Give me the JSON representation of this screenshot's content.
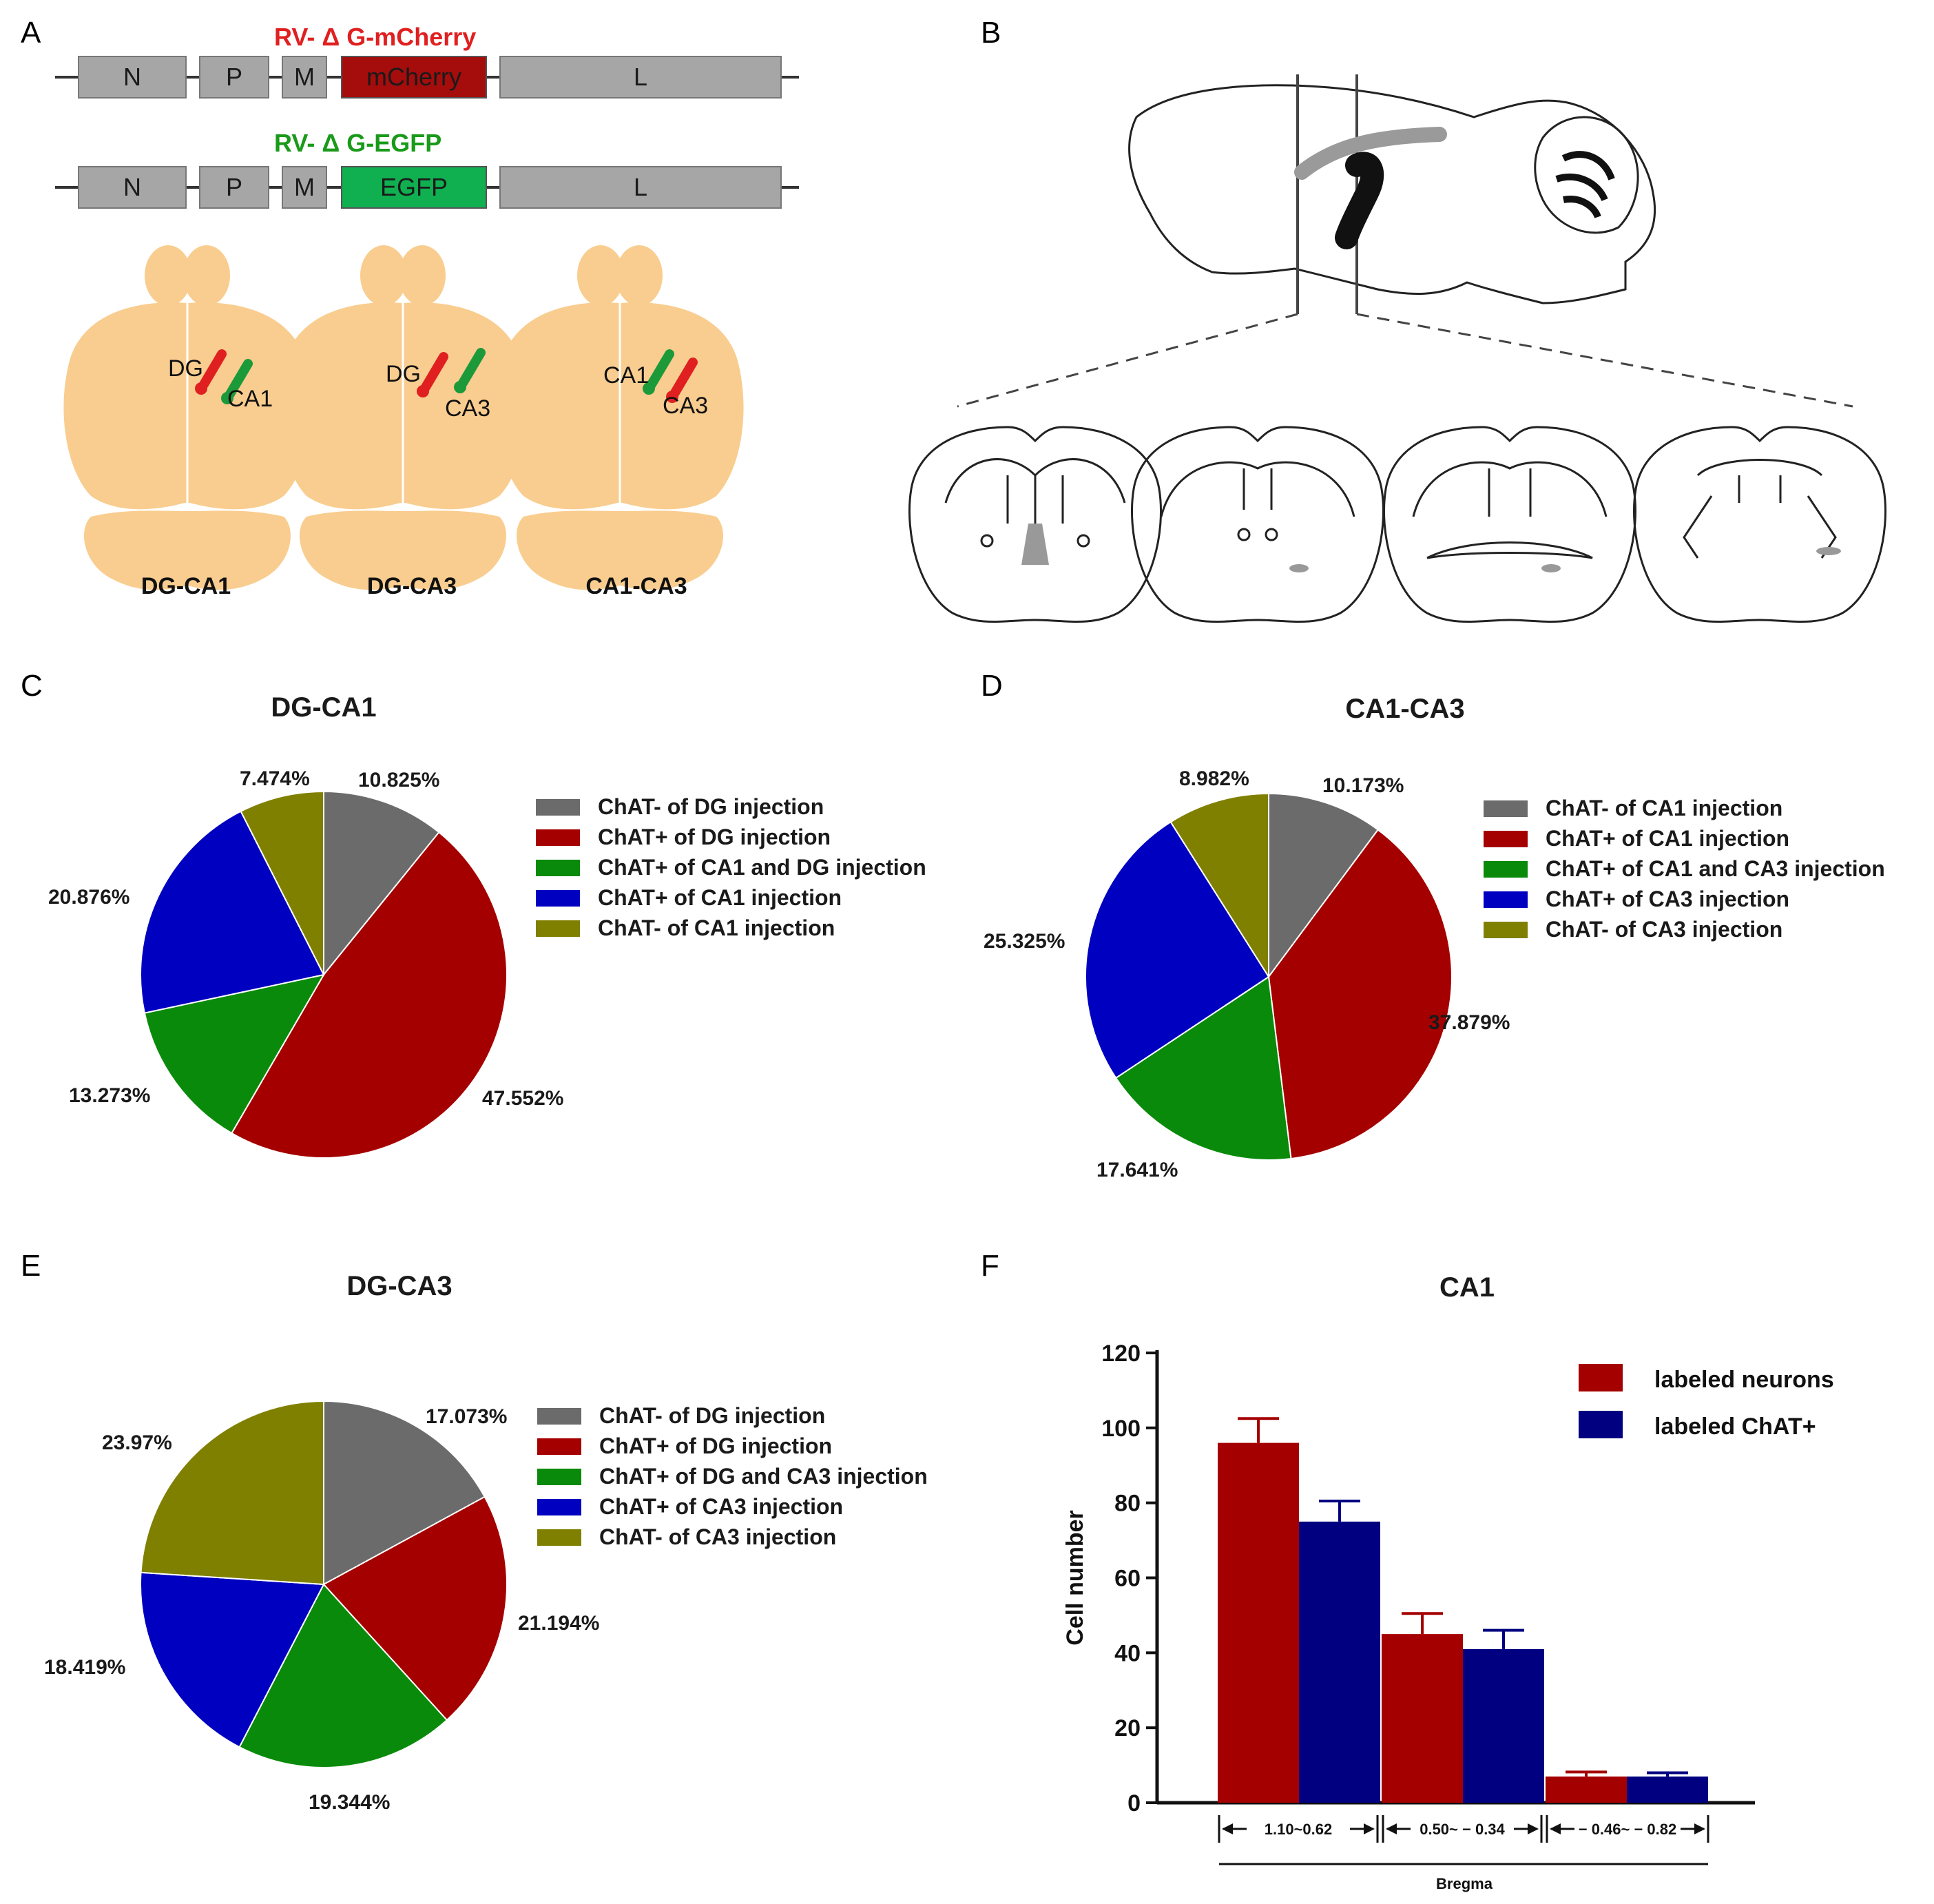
{
  "panels": {
    "A": {
      "letter": "A",
      "construct1": {
        "title": "RV- Δ G-mCherry",
        "segments": [
          "N",
          "P",
          "M",
          "mCherry",
          "L"
        ],
        "color": "#e02020",
        "fill": "#a50c0c"
      },
      "construct2": {
        "title": "RV- Δ G-EGFP",
        "segments": [
          "N",
          "P",
          "M",
          "EGFP",
          "L"
        ],
        "color": "#1a9a1a",
        "fill": "#10b050"
      },
      "mice": [
        {
          "caption": "DG-CA1",
          "label1": "DG",
          "label2": "CA1"
        },
        {
          "caption": "DG-CA3",
          "label1": "DG",
          "label2": "CA3"
        },
        {
          "caption": "CA1-CA3",
          "label1": "CA1",
          "label2": "CA3"
        }
      ]
    },
    "B": {
      "letter": "B"
    },
    "C": {
      "letter": "C",
      "title": "DG-CA1",
      "legend": [
        "ChAT- of DG injection",
        "ChAT+ of DG injection",
        "ChAT+ of CA1 and DG injection",
        "ChAT+ of CA1 injection",
        "ChAT- of CA1 injection"
      ]
    },
    "D": {
      "letter": "D",
      "title": "CA1-CA3",
      "legend": [
        "ChAT- of CA1 injection",
        "ChAT+ of CA1 injection",
        "ChAT+ of CA1 and CA3 injection",
        "ChAT+ of CA3 injection",
        "ChAT- of CA3 injection"
      ]
    },
    "E": {
      "letter": "E",
      "title": "DG-CA3",
      "legend": [
        "ChAT- of DG injection",
        "ChAT+ of DG injection",
        "ChAT+ of DG and CA3 injection",
        "ChAT+ of CA3 injection",
        "ChAT- of CA3 injection"
      ]
    },
    "F": {
      "letter": "F",
      "title": "CA1"
    }
  },
  "colors": {
    "gray": "#6b6b6b",
    "red": "#a50000",
    "green": "#0a8a0a",
    "blue": "#0000c0",
    "olive": "#808000",
    "navy": "#000080",
    "mouse": "#f9cd8f"
  },
  "chart_data": [
    {
      "type": "pie",
      "title": "DG-CA1",
      "labels": [
        "ChAT- of DG injection",
        "ChAT+ of DG injection",
        "ChAT+ of CA1 and DG injection",
        "ChAT+ of CA1 injection",
        "ChAT- of CA1 injection"
      ],
      "values": [
        10.825,
        47.552,
        13.273,
        20.876,
        7.474
      ],
      "value_labels": [
        "10.825%",
        "47.552%",
        "13.273%",
        "20.876%",
        "7.474%"
      ]
    },
    {
      "type": "pie",
      "title": "CA1-CA3",
      "labels": [
        "ChAT- of CA1 injection",
        "ChAT+ of CA1 injection",
        "ChAT+ of CA1 and CA3 injection",
        "ChAT+ of CA3 injection",
        "ChAT- of CA3 injection"
      ],
      "values": [
        10.173,
        37.879,
        17.641,
        25.325,
        8.982
      ],
      "value_labels": [
        "10.173%",
        "37.879%",
        "17.641%",
        "25.325%",
        "8.982%"
      ]
    },
    {
      "type": "pie",
      "title": "DG-CA3",
      "labels": [
        "ChAT- of DG injection",
        "ChAT+ of DG injection",
        "ChAT+ of DG and CA3 injection",
        "ChAT+ of CA3 injection",
        "ChAT- of CA3 injection"
      ],
      "values": [
        17.073,
        21.194,
        19.344,
        18.419,
        23.97
      ],
      "value_labels": [
        "17.073%",
        "21.194%",
        "19.344%",
        "18.419%",
        "23.97%"
      ]
    },
    {
      "type": "bar",
      "title": "CA1",
      "categories": [
        "1.10~0.62",
        "0.50~ − 0.34",
        "− 0.46~ − 0.82"
      ],
      "xlabel": "Bregma",
      "ylabel": "Cell number",
      "ylim": [
        0,
        120
      ],
      "yticks": [
        0,
        20,
        40,
        60,
        80,
        100,
        120
      ],
      "series": [
        {
          "name": "labeled neurons",
          "values": [
            96,
            45,
            7
          ],
          "errors": [
            6.5,
            5.5,
            1.2
          ]
        },
        {
          "name": "labeled ChAT+",
          "values": [
            75,
            41,
            7
          ],
          "errors": [
            5.5,
            5,
            1
          ]
        }
      ],
      "legend": "top-right"
    }
  ]
}
